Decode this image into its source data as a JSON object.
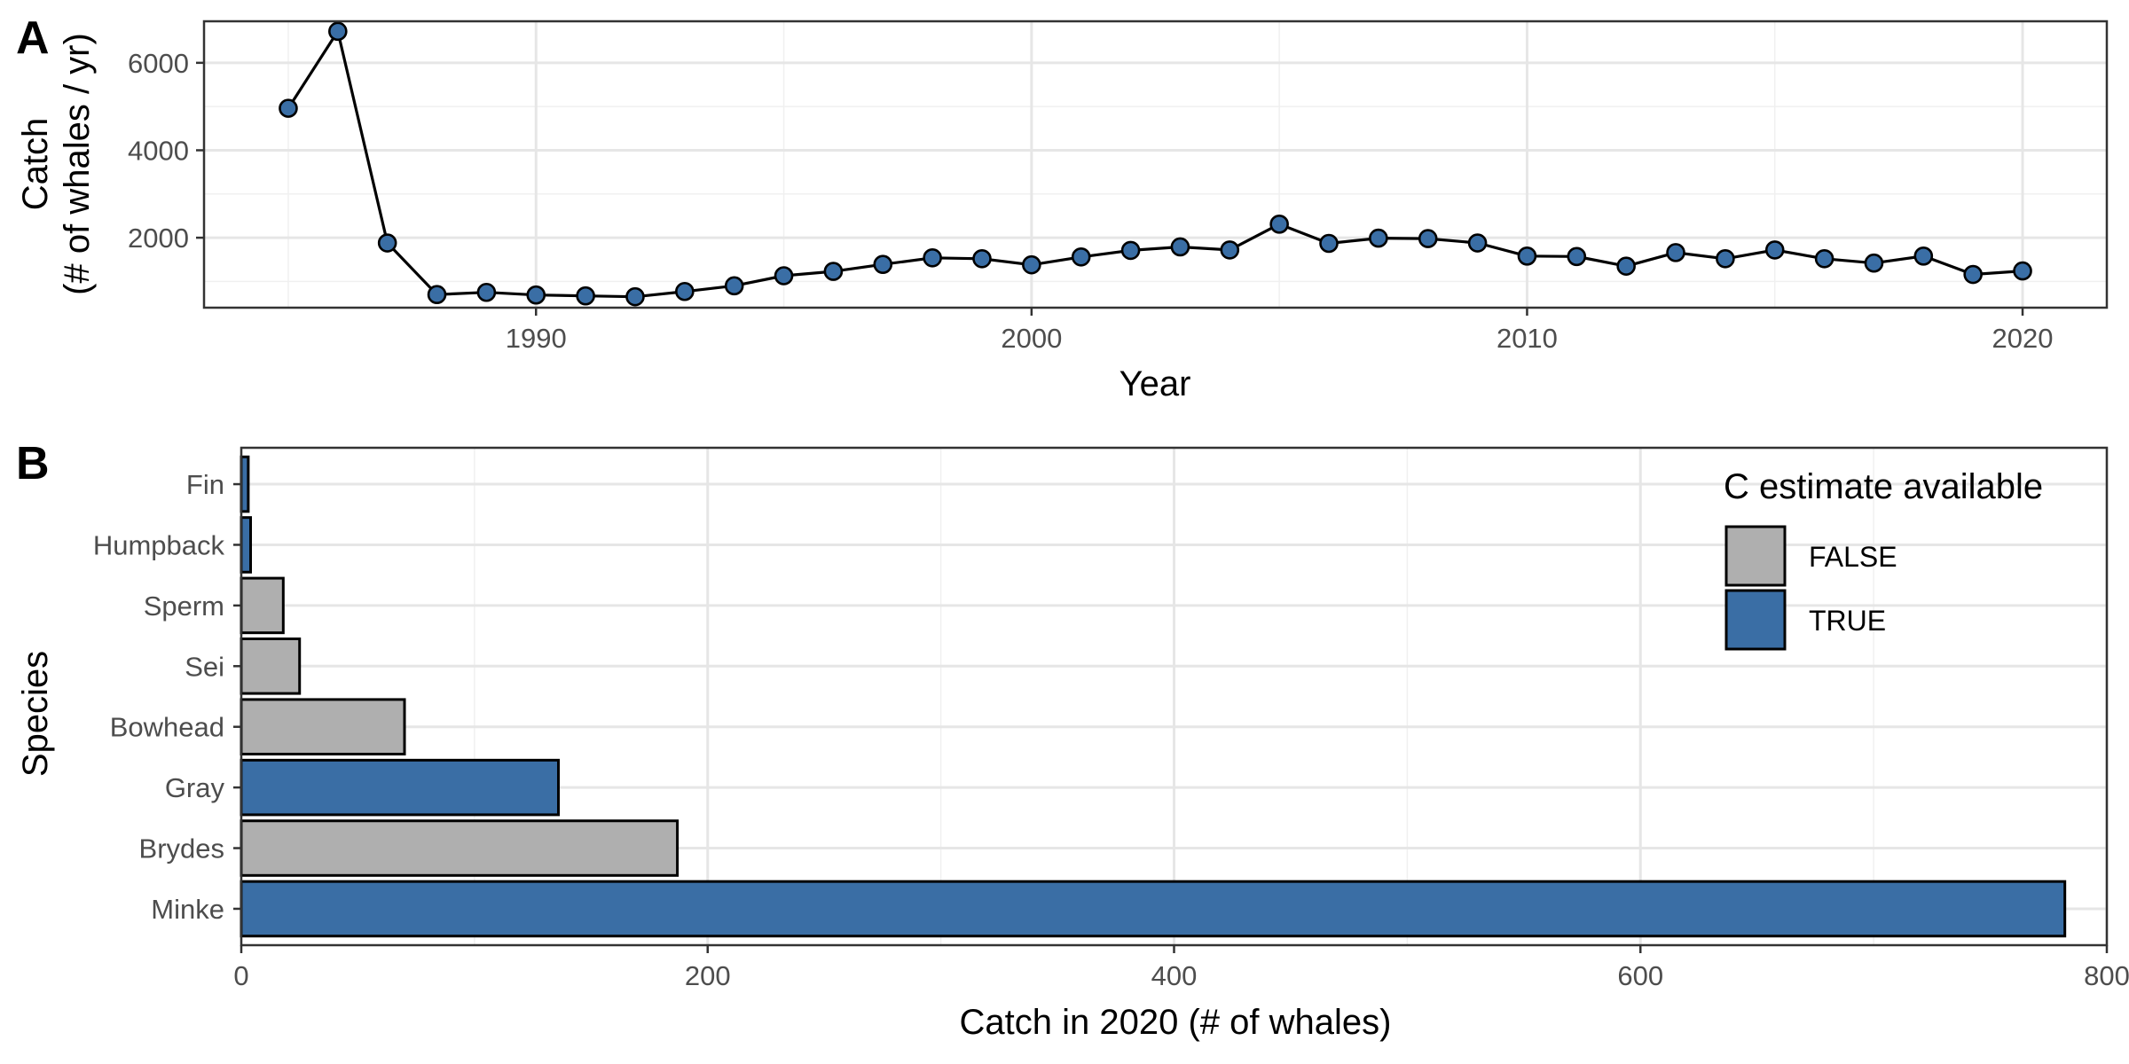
{
  "chart_data": [
    {
      "type": "line",
      "tag": "A",
      "xlabel": "Year",
      "ylabel_lines": [
        "Catch",
        "(# of whales / yr)"
      ],
      "xlim": [
        1983.3,
        2021.7
      ],
      "ylim": [
        400,
        6950
      ],
      "xticks": [
        1990,
        2000,
        2010,
        2020
      ],
      "yticks": [
        2000,
        4000,
        6000
      ],
      "xticklabels": [
        "1990",
        "2000",
        "2010",
        "2020"
      ],
      "yticklabels": [
        "2000",
        "4000",
        "6000"
      ],
      "grid": true,
      "colors": {
        "point_fill": "#3A6EA5",
        "line": "#000000"
      },
      "x": [
        1985,
        1986,
        1987,
        1988,
        1989,
        1990,
        1991,
        1992,
        1993,
        1994,
        1995,
        1996,
        1997,
        1998,
        1999,
        2000,
        2001,
        2002,
        2003,
        2004,
        2005,
        2006,
        2007,
        2008,
        2009,
        2010,
        2011,
        2012,
        2013,
        2014,
        2015,
        2016,
        2017,
        2018,
        2019,
        2020
      ],
      "y": [
        4960,
        6720,
        1880,
        700,
        750,
        690,
        670,
        650,
        770,
        900,
        1130,
        1230,
        1390,
        1540,
        1520,
        1380,
        1560,
        1710,
        1790,
        1720,
        2310,
        1870,
        1990,
        1980,
        1880,
        1580,
        1570,
        1350,
        1660,
        1520,
        1720,
        1520,
        1420,
        1580,
        1160,
        1240
      ]
    },
    {
      "type": "bar",
      "orientation": "horizontal",
      "tag": "B",
      "xlabel": "Catch in 2020 (# of whales)",
      "ylabel": "Species",
      "xlim": [
        0,
        800
      ],
      "xticks": [
        0,
        200,
        400,
        600,
        800
      ],
      "xticklabels": [
        "0",
        "200",
        "400",
        "600",
        "800"
      ],
      "grid": true,
      "categories": [
        "Fin",
        "Humpback",
        "Sperm",
        "Sei",
        "Bowhead",
        "Gray",
        "Brydes",
        "Minke"
      ],
      "values": [
        3,
        4,
        18,
        25,
        70,
        136,
        187,
        782
      ],
      "group": [
        "TRUE",
        "TRUE",
        "FALSE",
        "FALSE",
        "FALSE",
        "TRUE",
        "FALSE",
        "TRUE"
      ],
      "legend": {
        "title": "C estimate available",
        "position": "top-right",
        "entries": [
          {
            "label": "FALSE",
            "color": "#AFAFAF"
          },
          {
            "label": "TRUE",
            "color": "#3A6EA5"
          }
        ]
      }
    }
  ]
}
